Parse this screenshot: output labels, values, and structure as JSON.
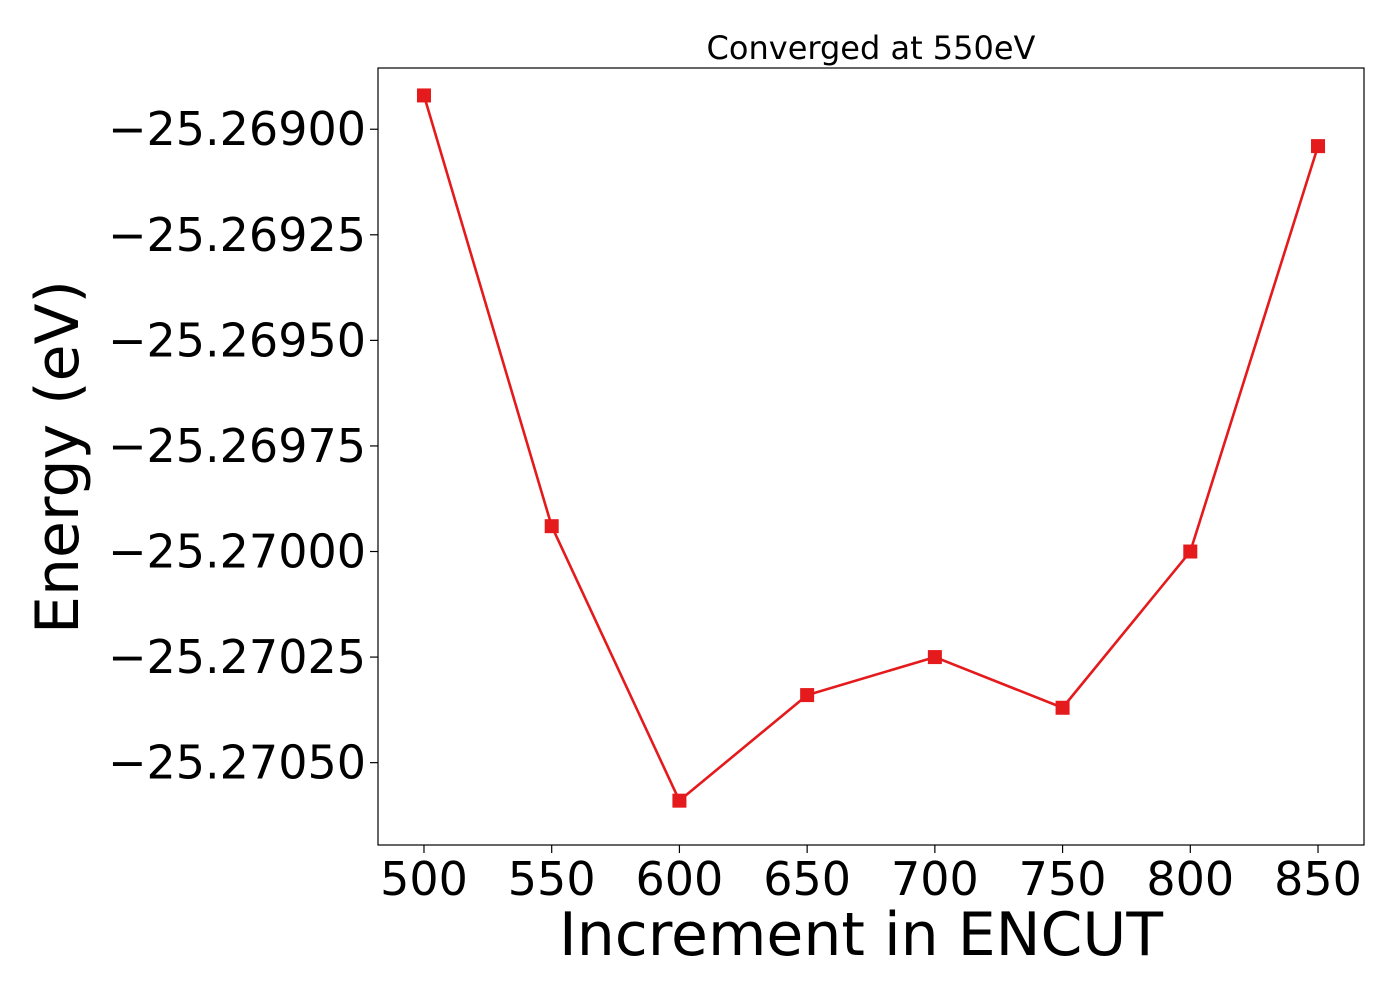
{
  "chart_data": {
    "type": "line",
    "title": "Converged at 550eV",
    "xlabel": "Increment in ENCUT",
    "ylabel": "Energy (eV)",
    "x": [
      500,
      550,
      600,
      650,
      700,
      750,
      800,
      850
    ],
    "series": [
      {
        "color": "#e41a1c",
        "marker": "square",
        "values": [
          -25.26892,
          -25.26994,
          -25.27059,
          -25.27034,
          -25.27025,
          -25.27037,
          -25.27,
          -25.26904
        ]
      }
    ],
    "xticks": [
      500,
      550,
      600,
      650,
      700,
      750,
      800,
      850
    ],
    "xtick_labels": [
      "500",
      "550",
      "600",
      "650",
      "700",
      "750",
      "800",
      "850"
    ],
    "yticks": [
      -25.269,
      -25.26925,
      -25.2695,
      -25.26975,
      -25.27,
      -25.27025,
      -25.2705
    ],
    "ytick_labels": [
      "−25.26900",
      "−25.26925",
      "−25.26950",
      "−25.26975",
      "−25.27000",
      "−25.27025",
      "−25.27050"
    ],
    "xlim": [
      482,
      868
    ],
    "ylim": [
      -25.270695,
      -25.268855
    ],
    "grid": false,
    "legend": "none"
  }
}
